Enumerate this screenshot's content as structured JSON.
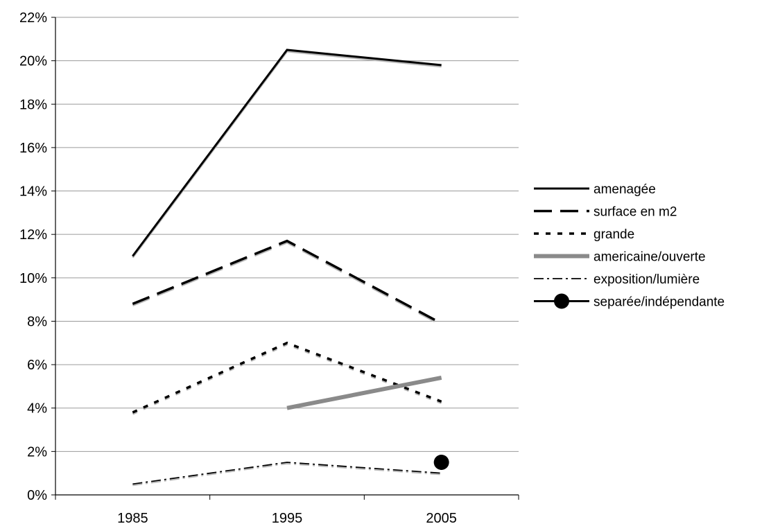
{
  "chart_data": {
    "type": "line",
    "title": "",
    "xlabel": "",
    "ylabel": "",
    "categories": [
      "1985",
      "1995",
      "2005"
    ],
    "ylim": [
      0,
      22
    ],
    "yticks": [
      0,
      2,
      4,
      6,
      8,
      10,
      12,
      14,
      16,
      18,
      20,
      22
    ],
    "ytick_labels": [
      "0%",
      "2%",
      "4%",
      "6%",
      "8%",
      "10%",
      "12%",
      "14%",
      "16%",
      "18%",
      "20%",
      "22%"
    ],
    "grid": true,
    "legend_position": "right",
    "series": [
      {
        "name": "amenagée",
        "style": "solid",
        "color": "#000000",
        "values": [
          11.0,
          20.5,
          19.8
        ]
      },
      {
        "name": "surface en m2",
        "style": "long-dash",
        "color": "#000000",
        "values": [
          8.8,
          11.7,
          7.9
        ]
      },
      {
        "name": "grande",
        "style": "short-dash",
        "color": "#000000",
        "values": [
          3.8,
          7.0,
          4.3
        ]
      },
      {
        "name": "americaine/ouverte",
        "style": "gray-thick",
        "color": "#8a8a8a",
        "values": [
          null,
          4.0,
          5.4
        ]
      },
      {
        "name": "exposition/lumière",
        "style": "dash-dot",
        "color": "#000000",
        "values": [
          0.5,
          1.5,
          1.0
        ]
      },
      {
        "name": "separée/indépendante",
        "style": "marker",
        "color": "#000000",
        "values": [
          null,
          null,
          1.5
        ]
      }
    ]
  }
}
